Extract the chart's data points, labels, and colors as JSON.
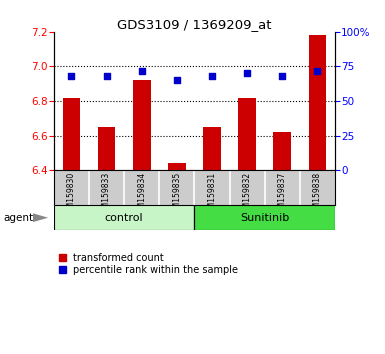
{
  "title": "GDS3109 / 1369209_at",
  "samples": [
    "GSM159830",
    "GSM159833",
    "GSM159834",
    "GSM159835",
    "GSM159831",
    "GSM159832",
    "GSM159837",
    "GSM159838"
  ],
  "transformed_counts": [
    6.82,
    6.65,
    6.92,
    6.44,
    6.65,
    6.82,
    6.62,
    7.18
  ],
  "percentile_ranks": [
    68,
    68,
    72,
    65,
    68,
    70,
    68,
    72
  ],
  "ylim_left": [
    6.4,
    7.2
  ],
  "ylim_right": [
    0,
    100
  ],
  "yticks_left": [
    6.4,
    6.6,
    6.8,
    7.0,
    7.2
  ],
  "yticks_right": [
    0,
    25,
    50,
    75,
    100
  ],
  "groups": [
    {
      "label": "control",
      "indices": [
        0,
        1,
        2,
        3
      ],
      "color": "#c8f5c8"
    },
    {
      "label": "Sunitinib",
      "indices": [
        4,
        5,
        6,
        7
      ],
      "color": "#44dd44"
    }
  ],
  "bar_color": "#cc0000",
  "dot_color": "#0000cc",
  "bar_width": 0.5,
  "background_color": "#ffffff",
  "tick_label_bg": "#cccccc",
  "agent_label": "agent",
  "legend_items": [
    {
      "label": "transformed count",
      "color": "#cc0000"
    },
    {
      "label": "percentile rank within the sample",
      "color": "#0000cc"
    }
  ]
}
